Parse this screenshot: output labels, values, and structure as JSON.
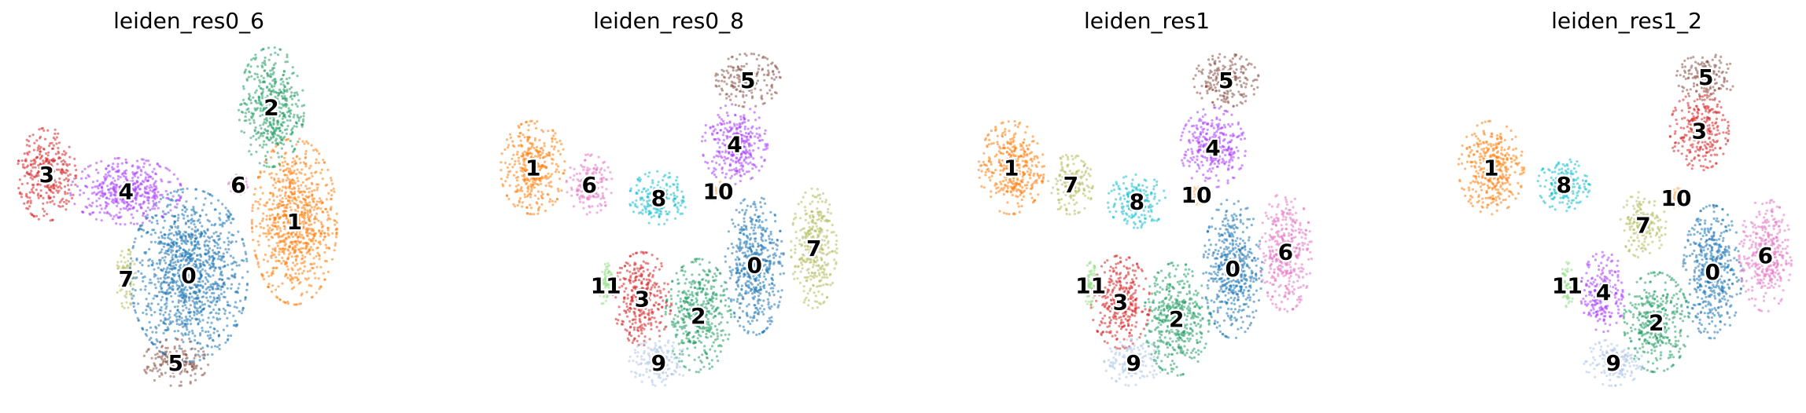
{
  "chart_data": [
    {
      "type": "scatter",
      "title": "leiden_res0_6",
      "xlabel": "",
      "ylabel": "",
      "grid": false,
      "clusters": [
        {
          "label": "0",
          "color": "#1f77b4",
          "x": 0.5,
          "y": 0.34,
          "rx": 0.18,
          "ry": 0.26
        },
        {
          "label": "1",
          "color": "#ff7f0e",
          "x": 0.82,
          "y": 0.5,
          "rx": 0.13,
          "ry": 0.25
        },
        {
          "label": "2",
          "color": "#279e68",
          "x": 0.75,
          "y": 0.84,
          "rx": 0.1,
          "ry": 0.18
        },
        {
          "label": "3",
          "color": "#d62728",
          "x": 0.07,
          "y": 0.64,
          "rx": 0.09,
          "ry": 0.14
        },
        {
          "label": "4",
          "color": "#aa40fc",
          "x": 0.31,
          "y": 0.59,
          "rx": 0.17,
          "ry": 0.1
        },
        {
          "label": "5",
          "color": "#8c564b",
          "x": 0.46,
          "y": 0.08,
          "rx": 0.1,
          "ry": 0.07
        },
        {
          "label": "6",
          "color": "#e377c2",
          "x": 0.65,
          "y": 0.61,
          "rx": 0.03,
          "ry": 0.03
        },
        {
          "label": "7",
          "color": "#b5bd61",
          "x": 0.31,
          "y": 0.33,
          "rx": 0.03,
          "ry": 0.09
        }
      ]
    },
    {
      "type": "scatter",
      "title": "leiden_res0_8",
      "xlabel": "",
      "ylabel": "",
      "grid": false,
      "clusters": [
        {
          "label": "0",
          "color": "#1f77b4",
          "x": 0.76,
          "y": 0.37,
          "rx": 0.09,
          "ry": 0.21
        },
        {
          "label": "1",
          "color": "#ff7f0e",
          "x": 0.09,
          "y": 0.66,
          "rx": 0.1,
          "ry": 0.14
        },
        {
          "label": "2",
          "color": "#279e68",
          "x": 0.59,
          "y": 0.22,
          "rx": 0.1,
          "ry": 0.17
        },
        {
          "label": "3",
          "color": "#d62728",
          "x": 0.42,
          "y": 0.27,
          "rx": 0.09,
          "ry": 0.14
        },
        {
          "label": "4",
          "color": "#aa40fc",
          "x": 0.7,
          "y": 0.73,
          "rx": 0.1,
          "ry": 0.12
        },
        {
          "label": "5",
          "color": "#8c564b",
          "x": 0.74,
          "y": 0.92,
          "rx": 0.1,
          "ry": 0.08
        },
        {
          "label": "6",
          "color": "#e377c2",
          "x": 0.26,
          "y": 0.61,
          "rx": 0.07,
          "ry": 0.09
        },
        {
          "label": "7",
          "color": "#b5bd61",
          "x": 0.94,
          "y": 0.42,
          "rx": 0.07,
          "ry": 0.18
        },
        {
          "label": "8",
          "color": "#17becf",
          "x": 0.47,
          "y": 0.57,
          "rx": 0.09,
          "ry": 0.08
        },
        {
          "label": "9",
          "color": "#aec7e8",
          "x": 0.47,
          "y": 0.08,
          "rx": 0.09,
          "ry": 0.07
        },
        {
          "label": "10",
          "color": "#ffbb78",
          "x": 0.65,
          "y": 0.59,
          "rx": 0.03,
          "ry": 0.03
        },
        {
          "label": "11",
          "color": "#98df8a",
          "x": 0.31,
          "y": 0.31,
          "rx": 0.02,
          "ry": 0.07
        }
      ]
    },
    {
      "type": "scatter",
      "title": "leiden_res1",
      "xlabel": "",
      "ylabel": "",
      "grid": false,
      "clusters": [
        {
          "label": "0",
          "color": "#1f77b4",
          "x": 0.76,
          "y": 0.36,
          "rx": 0.09,
          "ry": 0.21
        },
        {
          "label": "1",
          "color": "#ff7f0e",
          "x": 0.09,
          "y": 0.66,
          "rx": 0.1,
          "ry": 0.14
        },
        {
          "label": "2",
          "color": "#279e68",
          "x": 0.59,
          "y": 0.21,
          "rx": 0.1,
          "ry": 0.17
        },
        {
          "label": "3",
          "color": "#d62728",
          "x": 0.42,
          "y": 0.26,
          "rx": 0.09,
          "ry": 0.14
        },
        {
          "label": "4",
          "color": "#aa40fc",
          "x": 0.7,
          "y": 0.72,
          "rx": 0.1,
          "ry": 0.12
        },
        {
          "label": "5",
          "color": "#8c564b",
          "x": 0.74,
          "y": 0.92,
          "rx": 0.1,
          "ry": 0.08
        },
        {
          "label": "6",
          "color": "#e377c2",
          "x": 0.92,
          "y": 0.41,
          "rx": 0.08,
          "ry": 0.18
        },
        {
          "label": "7",
          "color": "#b5bd61",
          "x": 0.27,
          "y": 0.61,
          "rx": 0.07,
          "ry": 0.09
        },
        {
          "label": "8",
          "color": "#17becf",
          "x": 0.47,
          "y": 0.56,
          "rx": 0.09,
          "ry": 0.08
        },
        {
          "label": "9",
          "color": "#aec7e8",
          "x": 0.46,
          "y": 0.08,
          "rx": 0.09,
          "ry": 0.07
        },
        {
          "label": "10",
          "color": "#ffbb78",
          "x": 0.65,
          "y": 0.58,
          "rx": 0.03,
          "ry": 0.03
        },
        {
          "label": "11",
          "color": "#98df8a",
          "x": 0.33,
          "y": 0.31,
          "rx": 0.02,
          "ry": 0.07
        }
      ]
    },
    {
      "type": "scatter",
      "title": "leiden_res1_2",
      "xlabel": "",
      "ylabel": "",
      "grid": false,
      "clusters": [
        {
          "label": "0",
          "color": "#1f77b4",
          "x": 0.76,
          "y": 0.35,
          "rx": 0.09,
          "ry": 0.2
        },
        {
          "label": "1",
          "color": "#ff7f0e",
          "x": 0.09,
          "y": 0.66,
          "rx": 0.1,
          "ry": 0.14
        },
        {
          "label": "2",
          "color": "#279e68",
          "x": 0.59,
          "y": 0.2,
          "rx": 0.1,
          "ry": 0.15
        },
        {
          "label": "3",
          "color": "#d62728",
          "x": 0.72,
          "y": 0.77,
          "rx": 0.09,
          "ry": 0.12
        },
        {
          "label": "4",
          "color": "#aa40fc",
          "x": 0.43,
          "y": 0.29,
          "rx": 0.07,
          "ry": 0.12
        },
        {
          "label": "5",
          "color": "#8c564b",
          "x": 0.74,
          "y": 0.93,
          "rx": 0.09,
          "ry": 0.07
        },
        {
          "label": "6",
          "color": "#e377c2",
          "x": 0.92,
          "y": 0.4,
          "rx": 0.08,
          "ry": 0.17
        },
        {
          "label": "7",
          "color": "#b5bd61",
          "x": 0.55,
          "y": 0.49,
          "rx": 0.07,
          "ry": 0.1
        },
        {
          "label": "8",
          "color": "#17becf",
          "x": 0.31,
          "y": 0.61,
          "rx": 0.08,
          "ry": 0.08
        },
        {
          "label": "9",
          "color": "#aec7e8",
          "x": 0.46,
          "y": 0.08,
          "rx": 0.09,
          "ry": 0.07
        },
        {
          "label": "10",
          "color": "#ffbb78",
          "x": 0.65,
          "y": 0.57,
          "rx": 0.03,
          "ry": 0.03
        },
        {
          "label": "11",
          "color": "#98df8a",
          "x": 0.32,
          "y": 0.31,
          "rx": 0.02,
          "ry": 0.07
        }
      ]
    }
  ]
}
